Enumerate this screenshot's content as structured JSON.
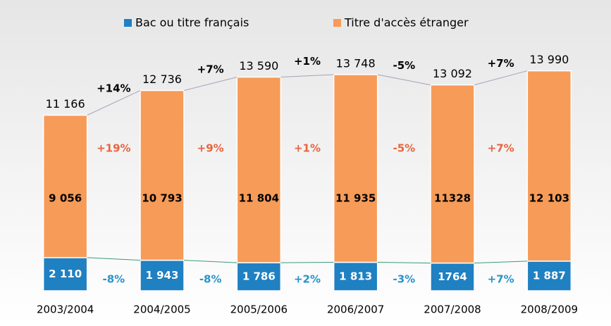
{
  "chart_data": {
    "type": "stacked_bar",
    "categories": [
      "2003/2004",
      "2004/2005",
      "2005/2006",
      "2006/2007",
      "2007/2008",
      "2008/2009"
    ],
    "series": [
      {
        "name": "Bac ou titre français",
        "color": "#1f80c2",
        "values": [
          2110,
          1943,
          1786,
          1813,
          1764,
          1887
        ],
        "value_labels": [
          "2 110",
          "1 943",
          "1 786",
          "1 813",
          "1764",
          "1 887"
        ]
      },
      {
        "name": "Titre d'accès étranger",
        "color": "#f79b58",
        "values": [
          9056,
          10793,
          11804,
          11935,
          11328,
          12103
        ],
        "value_labels": [
          "9 056",
          "10 793",
          "11 804",
          "11 935",
          "11328",
          "12 103"
        ]
      }
    ],
    "totals": {
      "values": [
        11166,
        12736,
        13590,
        13748,
        13092,
        13990
      ],
      "value_labels": [
        "11 166",
        "12 736",
        "13 590",
        "13 748",
        "13 092",
        "13 990"
      ]
    },
    "annotations": {
      "total_change": [
        "+14%",
        "+7%",
        "+1%",
        "-5%",
        "+7%"
      ],
      "orange_change": [
        "+19%",
        "+9%",
        "+1%",
        "-5%",
        "+7%"
      ],
      "blue_change": [
        "-8%",
        "-8%",
        "+2%",
        "-3%",
        "+7%"
      ]
    },
    "ylim": [
      0,
      15000
    ]
  }
}
